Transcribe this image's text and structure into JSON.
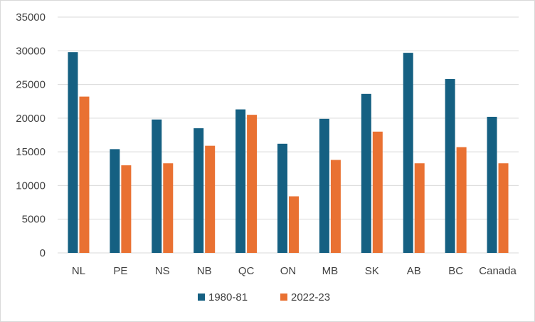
{
  "chart_data": {
    "type": "bar",
    "title": "",
    "xlabel": "",
    "ylabel": "",
    "categories": [
      "NL",
      "PE",
      "NS",
      "NB",
      "QC",
      "ON",
      "MB",
      "SK",
      "AB",
      "BC",
      "Canada"
    ],
    "series": [
      {
        "name": "1980-81",
        "color": "#156082",
        "values": [
          29800,
          15400,
          19800,
          18500,
          21300,
          16200,
          19900,
          23600,
          29700,
          25800,
          20200
        ]
      },
      {
        "name": "2022-23",
        "color": "#E97132",
        "values": [
          23200,
          13000,
          13300,
          15900,
          20500,
          8400,
          13800,
          18000,
          13300,
          15700,
          13300
        ]
      }
    ],
    "ylim": [
      0,
      35000
    ],
    "yticks": [
      0,
      5000,
      10000,
      15000,
      20000,
      25000,
      30000,
      35000
    ],
    "grid": true,
    "legend_position": "bottom"
  }
}
